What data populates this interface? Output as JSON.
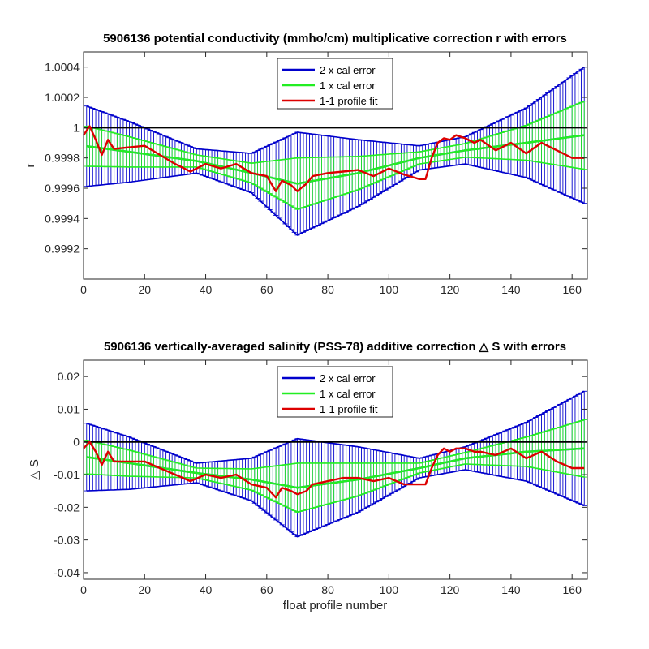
{
  "chart_data": [
    {
      "type": "line",
      "title": "5906136 potential conductivity (mmho/cm) multiplicative correction r with errors",
      "xlabel": "",
      "ylabel": "r",
      "xlim": [
        0,
        165
      ],
      "ylim": [
        0.999,
        1.0005
      ],
      "xticks": [
        0,
        20,
        40,
        60,
        80,
        100,
        120,
        140,
        160
      ],
      "xtick_labels": [
        "0",
        "20",
        "40",
        "60",
        "80",
        "100",
        "120",
        "140",
        "160"
      ],
      "yticks": [
        0.9992,
        0.9994,
        0.9996,
        0.9998,
        1.0,
        1.0002,
        1.0004
      ],
      "ytick_labels": [
        "0.9992",
        "0.9994",
        "0.9996",
        "0.9998",
        "1",
        "1.0002",
        "1.0004"
      ],
      "reference_line": 1.0,
      "legend": {
        "position": "top-center",
        "entries": [
          "2 x cal error",
          "1 x cal error",
          "1-1 profile fit"
        ]
      },
      "colors": {
        "two_x": "#0000cc",
        "one_x": "#22ee22",
        "fit": "#dd0000",
        "reference": "#000000"
      },
      "series": [
        {
          "name": "2 x cal error",
          "x": [
            0,
            15,
            37,
            55,
            70,
            90,
            110,
            125,
            145,
            164
          ],
          "center": [
            0.99988,
            0.99984,
            0.99978,
            0.9997,
            0.99963,
            0.9997,
            0.9998,
            0.99985,
            0.9999,
            0.99995
          ],
          "half_error": [
            0.00027,
            0.0002,
            8e-05,
            0.00013,
            0.00034,
            0.00022,
            8e-05,
            9e-05,
            0.00023,
            0.00045
          ]
        },
        {
          "name": "1 x cal error",
          "x": [
            0,
            15,
            37,
            55,
            70,
            90,
            110,
            125,
            145,
            164
          ],
          "center": [
            0.99988,
            0.99984,
            0.99978,
            0.9997,
            0.99963,
            0.9997,
            0.9998,
            0.99985,
            0.9999,
            0.99995
          ],
          "half_error": [
            0.000135,
            0.0001,
            4e-05,
            6.5e-05,
            0.00017,
            0.00011,
            4e-05,
            4.5e-05,
            0.000115,
            0.000225
          ]
        },
        {
          "name": "1-1 profile fit",
          "x": [
            0,
            2,
            4,
            6,
            8,
            10,
            15,
            20,
            25,
            30,
            35,
            40,
            45,
            50,
            55,
            60,
            63,
            65,
            68,
            70,
            73,
            75,
            80,
            85,
            90,
            95,
            100,
            105,
            110,
            112,
            114,
            116,
            118,
            120,
            122,
            125,
            128,
            130,
            135,
            140,
            145,
            150,
            155,
            160,
            164
          ],
          "y": [
            0.99995,
            1.00001,
            0.99992,
            0.99982,
            0.99992,
            0.99986,
            0.99987,
            0.99988,
            0.99982,
            0.99976,
            0.99971,
            0.99976,
            0.99973,
            0.99976,
            0.9997,
            0.99968,
            0.99958,
            0.99965,
            0.99962,
            0.99958,
            0.99963,
            0.99968,
            0.9997,
            0.99971,
            0.99972,
            0.99968,
            0.99973,
            0.99969,
            0.99966,
            0.99966,
            0.9998,
            0.9999,
            0.99993,
            0.99992,
            0.99995,
            0.99993,
            0.9999,
            0.99992,
            0.99985,
            0.9999,
            0.99983,
            0.9999,
            0.99985,
            0.9998,
            0.9998
          ]
        }
      ]
    },
    {
      "type": "line",
      "title": "5906136 vertically-averaged salinity (PSS-78) additive correction △ S with errors",
      "xlabel": "float profile number",
      "ylabel": "△ S",
      "xlim": [
        0,
        165
      ],
      "ylim": [
        -0.042,
        0.025
      ],
      "xticks": [
        0,
        20,
        40,
        60,
        80,
        100,
        120,
        140,
        160
      ],
      "xtick_labels": [
        "0",
        "20",
        "40",
        "60",
        "80",
        "100",
        "120",
        "140",
        "160"
      ],
      "yticks": [
        -0.04,
        -0.03,
        -0.02,
        -0.01,
        0,
        0.01,
        0.02
      ],
      "ytick_labels": [
        "-0.04",
        "-0.03",
        "-0.02",
        "-0.01",
        "0",
        "0.01",
        "0.02"
      ],
      "reference_line": 0,
      "legend": {
        "position": "top-center",
        "entries": [
          "2 x cal error",
          "1 x cal error",
          "1-1 profile fit"
        ]
      },
      "colors": {
        "two_x": "#0000cc",
        "one_x": "#22ee22",
        "fit": "#dd0000",
        "reference": "#000000"
      },
      "series": [
        {
          "name": "2 x cal error",
          "x": [
            0,
            15,
            37,
            55,
            70,
            90,
            110,
            125,
            145,
            164
          ],
          "center": [
            -0.0045,
            -0.0065,
            -0.0095,
            -0.0115,
            -0.014,
            -0.0115,
            -0.008,
            -0.005,
            -0.003,
            -0.002
          ],
          "half_error": [
            0.0105,
            0.008,
            0.003,
            0.0065,
            0.015,
            0.01,
            0.003,
            0.0035,
            0.009,
            0.0175
          ]
        },
        {
          "name": "1 x cal error",
          "x": [
            0,
            15,
            37,
            55,
            70,
            90,
            110,
            125,
            145,
            164
          ],
          "center": [
            -0.0045,
            -0.0065,
            -0.0095,
            -0.0115,
            -0.014,
            -0.0115,
            -0.008,
            -0.005,
            -0.003,
            -0.002
          ],
          "half_error": [
            0.00525,
            0.004,
            0.0015,
            0.00325,
            0.0075,
            0.005,
            0.0015,
            0.00175,
            0.0045,
            0.00875
          ]
        },
        {
          "name": "1-1 profile fit",
          "x": [
            0,
            2,
            4,
            6,
            8,
            10,
            15,
            20,
            25,
            30,
            35,
            40,
            45,
            50,
            55,
            60,
            63,
            65,
            68,
            70,
            73,
            75,
            80,
            85,
            90,
            95,
            100,
            105,
            110,
            112,
            114,
            116,
            118,
            120,
            122,
            125,
            128,
            130,
            135,
            140,
            145,
            150,
            155,
            160,
            164
          ],
          "y": [
            -0.002,
            0.0,
            -0.003,
            -0.007,
            -0.003,
            -0.006,
            -0.006,
            -0.006,
            -0.008,
            -0.01,
            -0.012,
            -0.01,
            -0.011,
            -0.01,
            -0.013,
            -0.014,
            -0.017,
            -0.014,
            -0.015,
            -0.016,
            -0.015,
            -0.013,
            -0.012,
            -0.011,
            -0.011,
            -0.012,
            -0.011,
            -0.013,
            -0.013,
            -0.013,
            -0.008,
            -0.004,
            -0.002,
            -0.003,
            -0.002,
            -0.002,
            -0.003,
            -0.003,
            -0.004,
            -0.002,
            -0.005,
            -0.003,
            -0.006,
            -0.008,
            -0.008
          ]
        }
      ]
    }
  ]
}
